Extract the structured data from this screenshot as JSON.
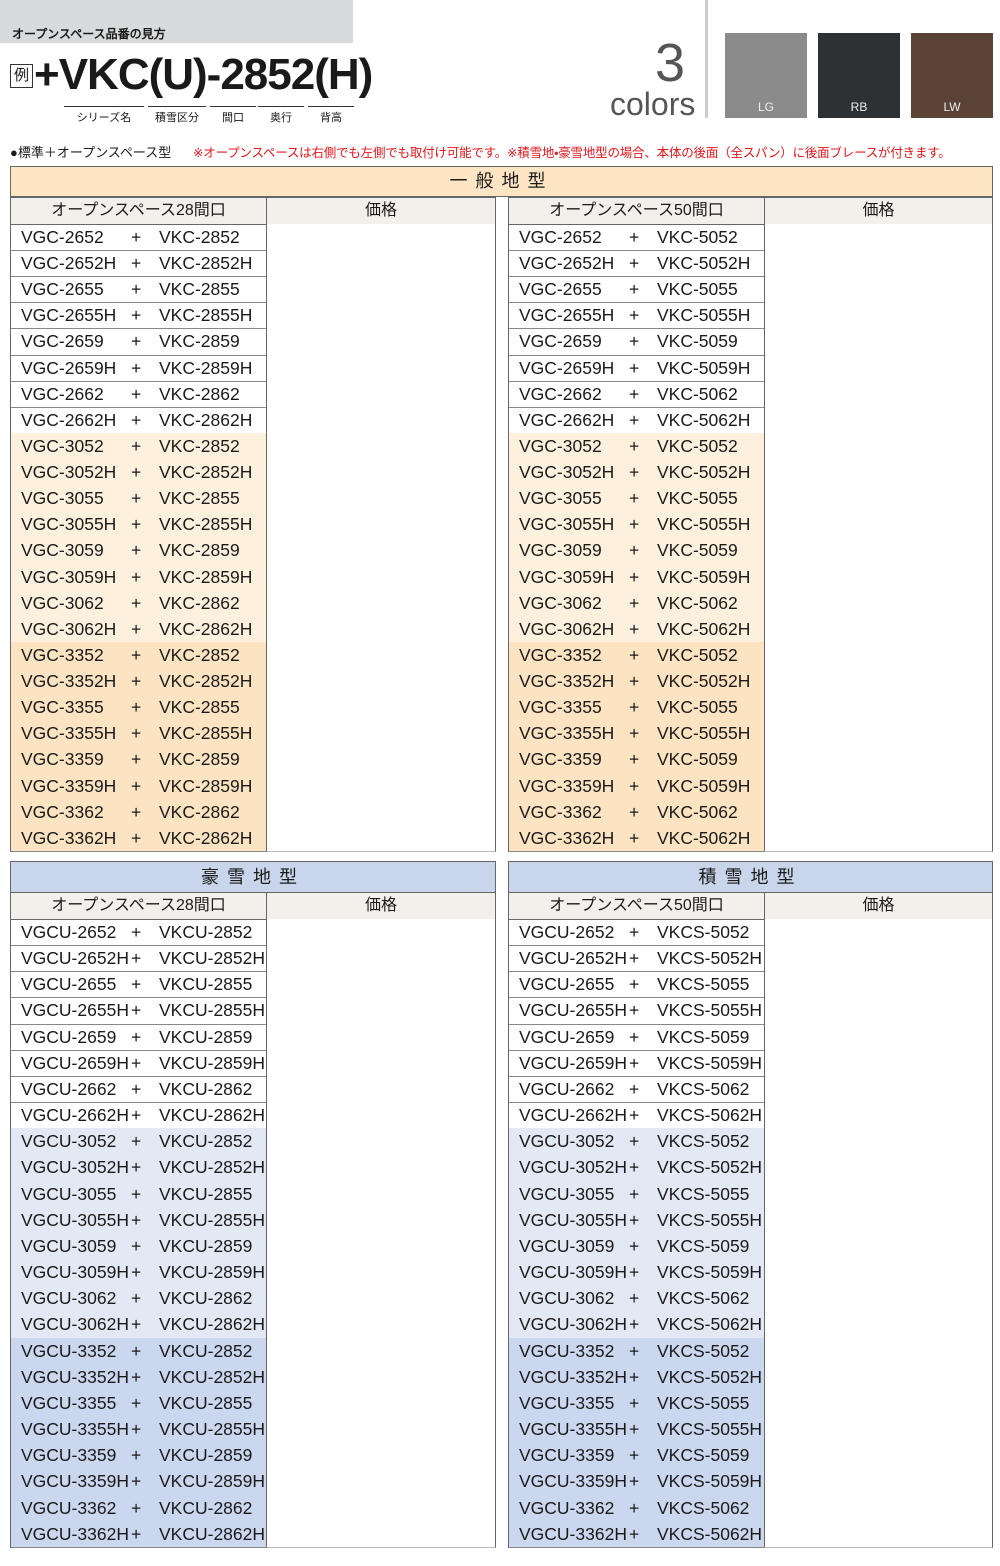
{
  "header": {
    "title": "オープンスペース品番の見方",
    "example_mark": "例",
    "example_code": "+VKC(U)-2852(H)",
    "code_parts": [
      "シリーズ名",
      "積雪区分",
      "間口",
      "奥行",
      "背高"
    ],
    "colors_count": "3",
    "colors_label": "colors",
    "swatches": [
      {
        "label": "LG",
        "color": "#8b8b8b"
      },
      {
        "label": "RB",
        "color": "#2e3134"
      },
      {
        "label": "LW",
        "color": "#5a4336"
      }
    ]
  },
  "note": {
    "lead": "●標準＋オープンスペース型",
    "remark": "※オープンスペースは右側でも左側でも取付け可能です。※積雪地・豪雪地型の場合、本体の後面（全スパン）に後面ブレースが付きます。"
  },
  "top": {
    "title": "一般地型",
    "tables": [
      {
        "header": [
          "オープンスペース28間口",
          "価格"
        ],
        "rows": [
          [
            "VGC-2652",
            "+",
            "VKC-2852"
          ],
          [
            "VGC-2652H",
            "+",
            "VKC-2852H"
          ],
          [
            "VGC-2655",
            "+",
            "VKC-2855"
          ],
          [
            "VGC-2655H",
            "+",
            "VKC-2855H"
          ],
          [
            "VGC-2659",
            "+",
            "VKC-2859"
          ],
          [
            "VGC-2659H",
            "+",
            "VKC-2859H"
          ],
          [
            "VGC-2662",
            "+",
            "VKC-2862"
          ],
          [
            "VGC-2662H",
            "+",
            "VKC-2862H"
          ],
          [
            "VGC-3052",
            "+",
            "VKC-2852"
          ],
          [
            "VGC-3052H",
            "+",
            "VKC-2852H"
          ],
          [
            "VGC-3055",
            "+",
            "VKC-2855"
          ],
          [
            "VGC-3055H",
            "+",
            "VKC-2855H"
          ],
          [
            "VGC-3059",
            "+",
            "VKC-2859"
          ],
          [
            "VGC-3059H",
            "+",
            "VKC-2859H"
          ],
          [
            "VGC-3062",
            "+",
            "VKC-2862"
          ],
          [
            "VGC-3062H",
            "+",
            "VKC-2862H"
          ],
          [
            "VGC-3352",
            "+",
            "VKC-2852"
          ],
          [
            "VGC-3352H",
            "+",
            "VKC-2852H"
          ],
          [
            "VGC-3355",
            "+",
            "VKC-2855"
          ],
          [
            "VGC-3355H",
            "+",
            "VKC-2855H"
          ],
          [
            "VGC-3359",
            "+",
            "VKC-2859"
          ],
          [
            "VGC-3359H",
            "+",
            "VKC-2859H"
          ],
          [
            "VGC-3362",
            "+",
            "VKC-2862"
          ],
          [
            "VGC-3362H",
            "+",
            "VKC-2862H"
          ]
        ]
      },
      {
        "header": [
          "オープンスペース50間口",
          "価格"
        ],
        "rows": [
          [
            "VGC-2652",
            "+",
            "VKC-5052"
          ],
          [
            "VGC-2652H",
            "+",
            "VKC-5052H"
          ],
          [
            "VGC-2655",
            "+",
            "VKC-5055"
          ],
          [
            "VGC-2655H",
            "+",
            "VKC-5055H"
          ],
          [
            "VGC-2659",
            "+",
            "VKC-5059"
          ],
          [
            "VGC-2659H",
            "+",
            "VKC-5059H"
          ],
          [
            "VGC-2662",
            "+",
            "VKC-5062"
          ],
          [
            "VGC-2662H",
            "+",
            "VKC-5062H"
          ],
          [
            "VGC-3052",
            "+",
            "VKC-5052"
          ],
          [
            "VGC-3052H",
            "+",
            "VKC-5052H"
          ],
          [
            "VGC-3055",
            "+",
            "VKC-5055"
          ],
          [
            "VGC-3055H",
            "+",
            "VKC-5055H"
          ],
          [
            "VGC-3059",
            "+",
            "VKC-5059"
          ],
          [
            "VGC-3059H",
            "+",
            "VKC-5059H"
          ],
          [
            "VGC-3062",
            "+",
            "VKC-5062"
          ],
          [
            "VGC-3062H",
            "+",
            "VKC-5062H"
          ],
          [
            "VGC-3352",
            "+",
            "VKC-5052"
          ],
          [
            "VGC-3352H",
            "+",
            "VKC-5052H"
          ],
          [
            "VGC-3355",
            "+",
            "VKC-5055"
          ],
          [
            "VGC-3355H",
            "+",
            "VKC-5055H"
          ],
          [
            "VGC-3359",
            "+",
            "VKC-5059"
          ],
          [
            "VGC-3359H",
            "+",
            "VKC-5059H"
          ],
          [
            "VGC-3362",
            "+",
            "VKC-5062"
          ],
          [
            "VGC-3362H",
            "+",
            "VKC-5062H"
          ]
        ]
      }
    ]
  },
  "bottom": {
    "tables": [
      {
        "title": "豪雪地型",
        "header": [
          "オープンスペース28間口",
          "価格"
        ],
        "rows": [
          [
            "VGCU-2652",
            "+",
            "VKCU-2852"
          ],
          [
            "VGCU-2652H",
            "+",
            "VKCU-2852H"
          ],
          [
            "VGCU-2655",
            "+",
            "VKCU-2855"
          ],
          [
            "VGCU-2655H",
            "+",
            "VKCU-2855H"
          ],
          [
            "VGCU-2659",
            "+",
            "VKCU-2859"
          ],
          [
            "VGCU-2659H",
            "+",
            "VKCU-2859H"
          ],
          [
            "VGCU-2662",
            "+",
            "VKCU-2862"
          ],
          [
            "VGCU-2662H",
            "+",
            "VKCU-2862H"
          ],
          [
            "VGCU-3052",
            "+",
            "VKCU-2852"
          ],
          [
            "VGCU-3052H",
            "+",
            "VKCU-2852H"
          ],
          [
            "VGCU-3055",
            "+",
            "VKCU-2855"
          ],
          [
            "VGCU-3055H",
            "+",
            "VKCU-2855H"
          ],
          [
            "VGCU-3059",
            "+",
            "VKCU-2859"
          ],
          [
            "VGCU-3059H",
            "+",
            "VKCU-2859H"
          ],
          [
            "VGCU-3062",
            "+",
            "VKCU-2862"
          ],
          [
            "VGCU-3062H",
            "+",
            "VKCU-2862H"
          ],
          [
            "VGCU-3352",
            "+",
            "VKCU-2852"
          ],
          [
            "VGCU-3352H",
            "+",
            "VKCU-2852H"
          ],
          [
            "VGCU-3355",
            "+",
            "VKCU-2855"
          ],
          [
            "VGCU-3355H",
            "+",
            "VKCU-2855H"
          ],
          [
            "VGCU-3359",
            "+",
            "VKCU-2859"
          ],
          [
            "VGCU-3359H",
            "+",
            "VKCU-2859H"
          ],
          [
            "VGCU-3362",
            "+",
            "VKCU-2862"
          ],
          [
            "VGCU-3362H",
            "+",
            "VKCU-2862H"
          ]
        ]
      },
      {
        "title": "積雪地型",
        "header": [
          "オープンスペース50間口",
          "価格"
        ],
        "rows": [
          [
            "VGCU-2652",
            "+",
            "VKCS-5052"
          ],
          [
            "VGCU-2652H",
            "+",
            "VKCS-5052H"
          ],
          [
            "VGCU-2655",
            "+",
            "VKCS-5055"
          ],
          [
            "VGCU-2655H",
            "+",
            "VKCS-5055H"
          ],
          [
            "VGCU-2659",
            "+",
            "VKCS-5059"
          ],
          [
            "VGCU-2659H",
            "+",
            "VKCS-5059H"
          ],
          [
            "VGCU-2662",
            "+",
            "VKCS-5062"
          ],
          [
            "VGCU-2662H",
            "+",
            "VKCS-5062H"
          ],
          [
            "VGCU-3052",
            "+",
            "VKCS-5052"
          ],
          [
            "VGCU-3052H",
            "+",
            "VKCS-5052H"
          ],
          [
            "VGCU-3055",
            "+",
            "VKCS-5055"
          ],
          [
            "VGCU-3055H",
            "+",
            "VKCS-5055H"
          ],
          [
            "VGCU-3059",
            "+",
            "VKCS-5059"
          ],
          [
            "VGCU-3059H",
            "+",
            "VKCS-5059H"
          ],
          [
            "VGCU-3062",
            "+",
            "VKCS-5062"
          ],
          [
            "VGCU-3062H",
            "+",
            "VKCS-5062H"
          ],
          [
            "VGCU-3352",
            "+",
            "VKCS-5052"
          ],
          [
            "VGCU-3352H",
            "+",
            "VKCS-5052H"
          ],
          [
            "VGCU-3355",
            "+",
            "VKCS-5055"
          ],
          [
            "VGCU-3355H",
            "+",
            "VKCS-5055H"
          ],
          [
            "VGCU-3359",
            "+",
            "VKCS-5059"
          ],
          [
            "VGCU-3359H",
            "+",
            "VKCS-5059H"
          ],
          [
            "VGCU-3362",
            "+",
            "VKCS-5062"
          ],
          [
            "VGCU-3362H",
            "+",
            "VKCS-5062H"
          ]
        ]
      }
    ]
  }
}
